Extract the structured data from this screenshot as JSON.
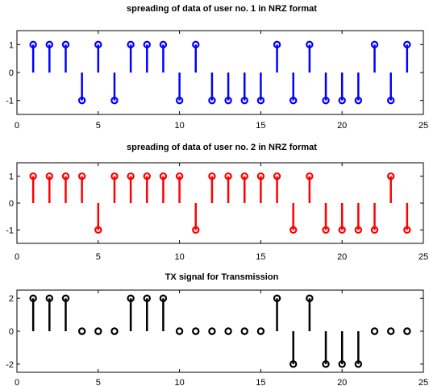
{
  "chart_data": [
    {
      "type": "stem",
      "title": "spreading of data of user no. 1 in NRZ format",
      "x": [
        1,
        2,
        3,
        4,
        5,
        6,
        7,
        8,
        9,
        10,
        11,
        12,
        13,
        14,
        15,
        16,
        17,
        18,
        19,
        20,
        21,
        22,
        23,
        24
      ],
      "values": [
        1,
        1,
        1,
        -1,
        1,
        -1,
        1,
        1,
        1,
        -1,
        1,
        -1,
        -1,
        -1,
        -1,
        1,
        -1,
        1,
        -1,
        -1,
        -1,
        1,
        -1,
        1
      ],
      "xlim": [
        0,
        25
      ],
      "ylim": [
        -1.5,
        1.5
      ],
      "xticks": [
        "0",
        "5",
        "10",
        "15",
        "20",
        "25"
      ],
      "yticks": [
        "1",
        "0",
        "-1"
      ],
      "color": "#0000ff",
      "grid": false
    },
    {
      "type": "stem",
      "title": "spreading of data of user no. 2 in NRZ format",
      "x": [
        1,
        2,
        3,
        4,
        5,
        6,
        7,
        8,
        9,
        10,
        11,
        12,
        13,
        14,
        15,
        16,
        17,
        18,
        19,
        20,
        21,
        22,
        23,
        24
      ],
      "values": [
        1,
        1,
        1,
        1,
        -1,
        1,
        1,
        1,
        1,
        1,
        -1,
        1,
        1,
        1,
        1,
        1,
        -1,
        1,
        -1,
        -1,
        -1,
        -1,
        1,
        -1
      ],
      "xlim": [
        0,
        25
      ],
      "ylim": [
        -1.5,
        1.5
      ],
      "xticks": [
        "0",
        "5",
        "10",
        "15",
        "20",
        "25"
      ],
      "yticks": [
        "1",
        "0",
        "-1"
      ],
      "color": "#ff0000",
      "grid": false
    },
    {
      "type": "stem",
      "title": "TX signal for Transmission",
      "x": [
        1,
        2,
        3,
        4,
        5,
        6,
        7,
        8,
        9,
        10,
        11,
        12,
        13,
        14,
        15,
        16,
        17,
        18,
        19,
        20,
        21,
        22,
        23,
        24
      ],
      "values": [
        2,
        2,
        2,
        0,
        0,
        0,
        2,
        2,
        2,
        0,
        0,
        0,
        0,
        0,
        0,
        2,
        -2,
        2,
        -2,
        -2,
        -2,
        0,
        0,
        0
      ],
      "xlim": [
        0,
        25
      ],
      "ylim": [
        -2.5,
        2.5
      ],
      "xticks": [
        "0",
        "5",
        "10",
        "15",
        "20",
        "25"
      ],
      "yticks": [
        "2",
        "0",
        "-2"
      ],
      "color": "#000000",
      "grid": false
    }
  ]
}
